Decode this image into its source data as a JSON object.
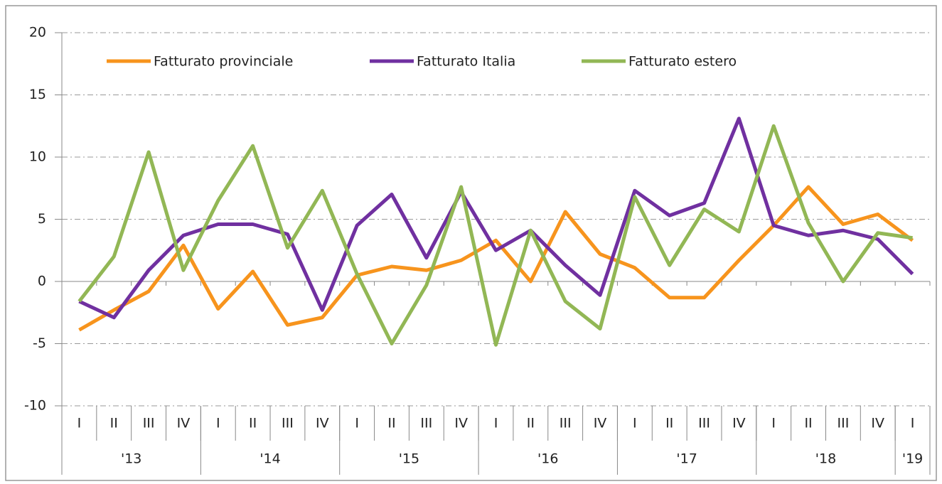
{
  "chart_data": {
    "type": "line",
    "categories": [
      "I",
      "II",
      "III",
      "IV",
      "I",
      "II",
      "III",
      "IV",
      "I",
      "II",
      "III",
      "IV",
      "I",
      "II",
      "III",
      "IV",
      "I",
      "II",
      "III",
      "IV",
      "I",
      "II",
      "III",
      "IV",
      "I"
    ],
    "groups": [
      {
        "label": "'13",
        "size": 4
      },
      {
        "label": "'14",
        "size": 4
      },
      {
        "label": "'15",
        "size": 4
      },
      {
        "label": "'16",
        "size": 4
      },
      {
        "label": "'17",
        "size": 4
      },
      {
        "label": "'18",
        "size": 4
      },
      {
        "label": "'19",
        "size": 1
      }
    ],
    "series": [
      {
        "name": "Fatturato provinciale",
        "color": "#f7941d",
        "values": [
          -3.9,
          -2.3,
          -0.8,
          2.9,
          -2.2,
          0.8,
          -3.5,
          -2.9,
          0.5,
          1.2,
          0.9,
          1.7,
          3.3,
          0,
          5.6,
          2.2,
          1.1,
          -1.3,
          -1.3,
          1.7,
          4.5,
          7.6,
          4.6,
          5.4,
          3.3
        ]
      },
      {
        "name": "Fatturato Italia",
        "color": "#7030a0",
        "values": [
          -1.6,
          -2.9,
          0.9,
          3.7,
          4.6,
          4.6,
          3.8,
          -2.3,
          4.5,
          7.0,
          1.9,
          7.2,
          2.5,
          4.1,
          1.3,
          -1.1,
          7.3,
          5.3,
          6.3,
          13.1,
          4.5,
          3.7,
          4.1,
          3.4,
          0.6
        ]
      },
      {
        "name": "Fatturato estero",
        "color": "#92b755",
        "values": [
          -1.6,
          2.0,
          10.4,
          0.9,
          6.5,
          10.9,
          2.7,
          7.3,
          0.6,
          -5.0,
          -0.3,
          7.6,
          -5.1,
          4.1,
          -1.6,
          -3.8,
          6.8,
          1.3,
          5.8,
          4.0,
          12.5,
          4.7,
          0.0,
          3.9,
          3.5
        ]
      }
    ],
    "ylim": [
      -10,
      20
    ],
    "yticks": [
      -10,
      -5,
      0,
      5,
      10,
      15,
      20
    ],
    "grid": true,
    "legend": "top"
  }
}
